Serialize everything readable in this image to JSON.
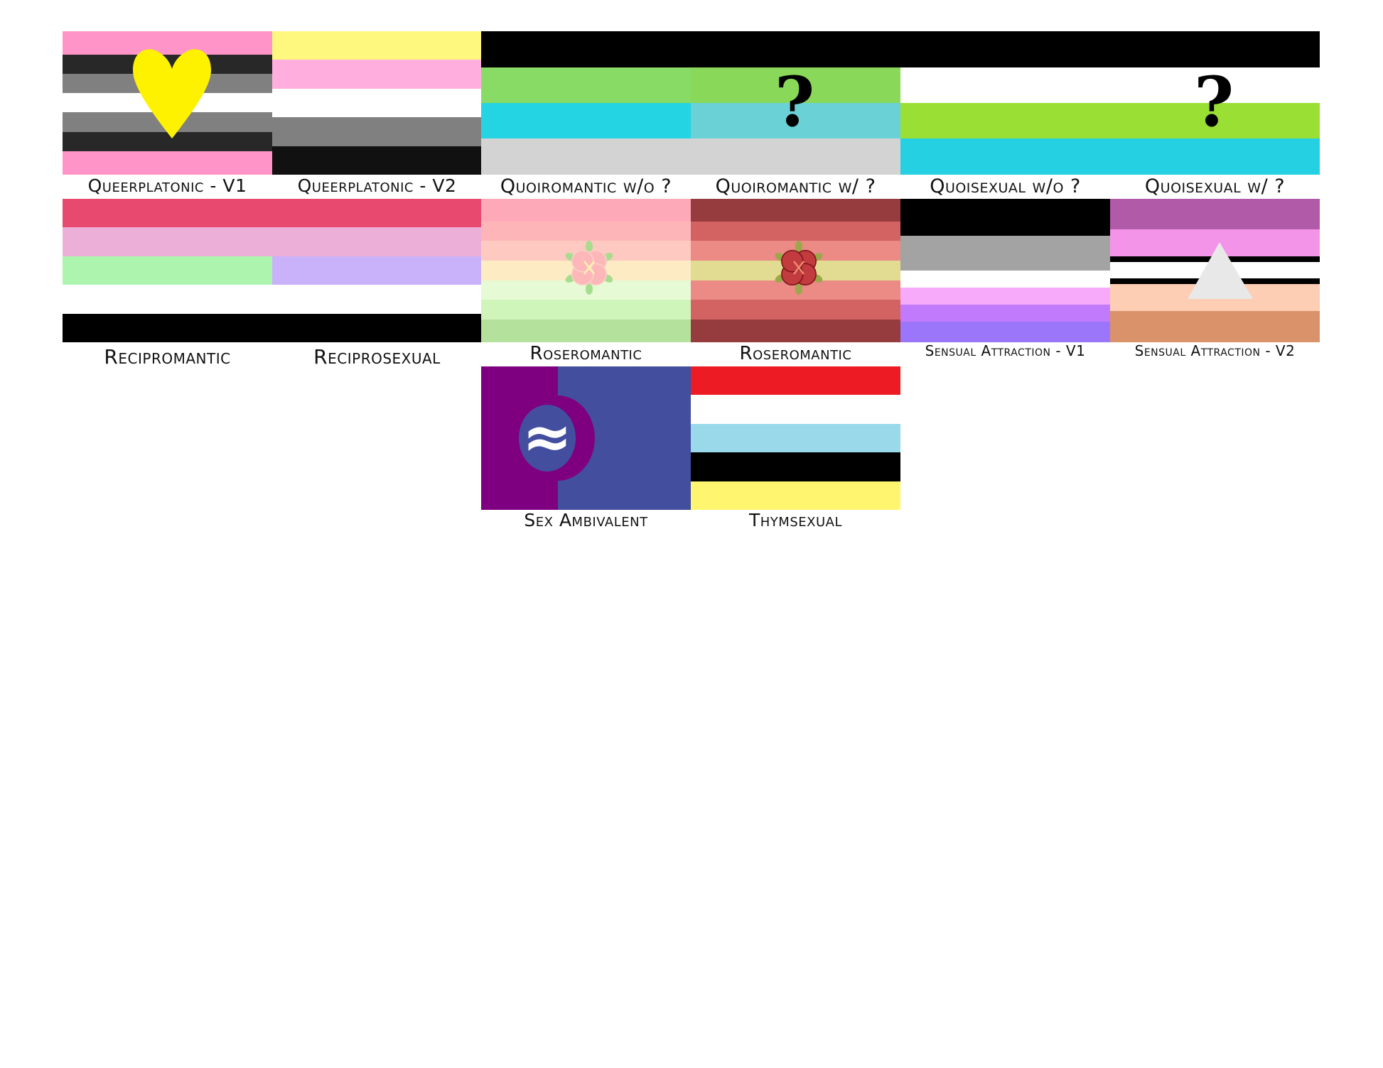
{
  "flags": [
    {
      "id": "qp1",
      "label": "Queerplatonic - V1",
      "colors": [
        "#ff94c8",
        "#282828",
        "#808080",
        "#ffffff",
        "#808080",
        "#282828",
        "#ff94c8"
      ],
      "weights": [
        33,
        27,
        27,
        27,
        28,
        27,
        33
      ],
      "symbol": "heart-icon",
      "symbol_color": "#fff200"
    },
    {
      "id": "qp2",
      "label": "Queerplatonic - V2",
      "colors": [
        "#fff87f",
        "#ffaedd",
        "#ffffff",
        "#808080",
        "#111111"
      ],
      "weights": [
        1,
        1,
        1,
        1,
        1
      ]
    },
    {
      "id": "quoiro1",
      "label": "Quoiromantic w/o ?",
      "colors": [
        "#000000",
        "#88db64",
        "#25d4e2",
        "#d3d3d3"
      ],
      "weights": [
        51,
        50,
        50,
        51
      ]
    },
    {
      "id": "quoiro2",
      "label": "Quoiromantic w/ ?",
      "colors": [
        "#000000",
        "#8ad85a",
        "#6ad1d6",
        "#d3d3d3"
      ],
      "weights": [
        51,
        50,
        50,
        51
      ],
      "symbol": "?"
    },
    {
      "id": "quoisex1",
      "label": "Quoisexual w/o ?",
      "colors": [
        "#000000",
        "#ffffff",
        "#9adf33",
        "#25d0e2"
      ],
      "weights": [
        51,
        50,
        50,
        51
      ]
    },
    {
      "id": "quoisex2",
      "label": "Quoisexual w/ ?",
      "colors": [
        "#000000",
        "#ffffff",
        "#9adf33",
        "#25d0e2"
      ],
      "weights": [
        51,
        50,
        50,
        51
      ],
      "symbol": "?"
    },
    {
      "id": "recrom",
      "label": "Recipromantic",
      "colors": [
        "#e8496f",
        "#ecb0d8",
        "#adf5ae",
        "#ffffff",
        "#000000"
      ],
      "weights": [
        1,
        1,
        1,
        1,
        1
      ]
    },
    {
      "id": "recsex",
      "label": "Reciprosexual",
      "colors": [
        "#e8496f",
        "#ecb0d8",
        "#cab2fb",
        "#ffffff",
        "#000000"
      ],
      "weights": [
        1,
        1,
        1,
        1,
        1
      ]
    },
    {
      "id": "rose1",
      "label": "Roseromantic",
      "colors": [
        "#fea9b7",
        "#fdb5b7",
        "#fdc9c0",
        "#fdebc4",
        "#e6fbd5",
        "#cff5bb",
        "#b4e19b"
      ],
      "weights": [
        32,
        27,
        28,
        27,
        27,
        28,
        32
      ],
      "symbol": "flower-icon",
      "symbol_color": "#fdb7b9"
    },
    {
      "id": "rose2",
      "label": "Roseromantic",
      "colors": [
        "#963b3e",
        "#d36363",
        "#ec8a85",
        "#e2dc92",
        "#ec8a85",
        "#d36363",
        "#963b3e"
      ],
      "weights": [
        32,
        27,
        28,
        27,
        27,
        28,
        32
      ],
      "symbol": "flower-icon",
      "symbol_color": "#c23b3e"
    },
    {
      "id": "sens1",
      "label": "Sensual Attraction - V1",
      "colors": [
        "#000000",
        "#a3a3a3",
        "#ffffff",
        "#f6aaf9",
        "#c17afb",
        "#9b76fb"
      ],
      "weights": [
        52,
        48,
        24,
        24,
        24,
        29
      ]
    },
    {
      "id": "sens2",
      "label": "Sensual Attraction - V2",
      "colors": [
        "#b05aa8",
        "#f394e9",
        "#000000",
        "#ffffff",
        "#000000",
        "#fdceb3",
        "#d9926a"
      ],
      "weights": [
        43,
        38,
        8,
        22,
        8,
        38,
        44
      ],
      "symbol": "triangle-icon",
      "symbol_color": "#e8e8e8"
    },
    {
      "id": "sexamb",
      "label": "Sex Ambivalent",
      "colors": [
        "#7e0080",
        "#434f9e"
      ],
      "symbol": "≈"
    },
    {
      "id": "thym",
      "label": "Thymsexual",
      "colors": [
        "#ed1c24",
        "#ffffff",
        "#99d9ea",
        "#000000",
        "#fff56e"
      ],
      "weights": [
        1,
        1,
        1,
        1,
        1
      ]
    }
  ]
}
